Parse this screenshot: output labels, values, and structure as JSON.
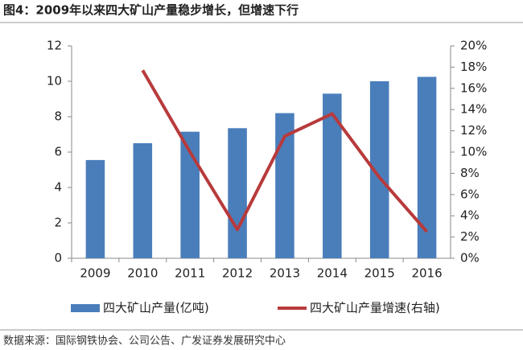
{
  "chart_data": {
    "type": "bar",
    "title": "图4：2009年以来四大矿山产量稳步增长，但增速下行",
    "source": "数据来源：国际钢铁协会、公司公告、广发证券发展研究中心",
    "categories": [
      "2009",
      "2010",
      "2011",
      "2012",
      "2013",
      "2014",
      "2015",
      "2016"
    ],
    "series": [
      {
        "name": "四大矿山产量(亿吨)",
        "color": "#4a7ebb",
        "values": [
          5.55,
          6.5,
          7.15,
          7.35,
          8.2,
          9.3,
          10.0,
          10.25
        ]
      },
      {
        "name": "四大矿山产量增速(右轴)",
        "color": "#b83a3c",
        "type": "line",
        "axis": "y2",
        "values": [
          null,
          17.7,
          10.0,
          2.7,
          11.5,
          13.6,
          7.6,
          2.5
        ]
      }
    ],
    "ylim": [
      0,
      12
    ],
    "yticks": [
      0,
      2,
      4,
      6,
      8,
      10,
      12
    ],
    "y2lim": [
      0,
      20
    ],
    "y2ticks": [
      {
        "value": 0,
        "label": "0%"
      },
      {
        "value": 2,
        "label": "2%"
      },
      {
        "value": 4,
        "label": "4%"
      },
      {
        "value": 6,
        "label": "6%"
      },
      {
        "value": 8,
        "label": "8%"
      },
      {
        "value": 10,
        "label": "10%"
      },
      {
        "value": 12,
        "label": "12%"
      },
      {
        "value": 14,
        "label": "14%"
      },
      {
        "value": 16,
        "label": "16%"
      },
      {
        "value": 18,
        "label": "18%"
      },
      {
        "value": 20,
        "label": "20%"
      }
    ],
    "grid": false
  }
}
